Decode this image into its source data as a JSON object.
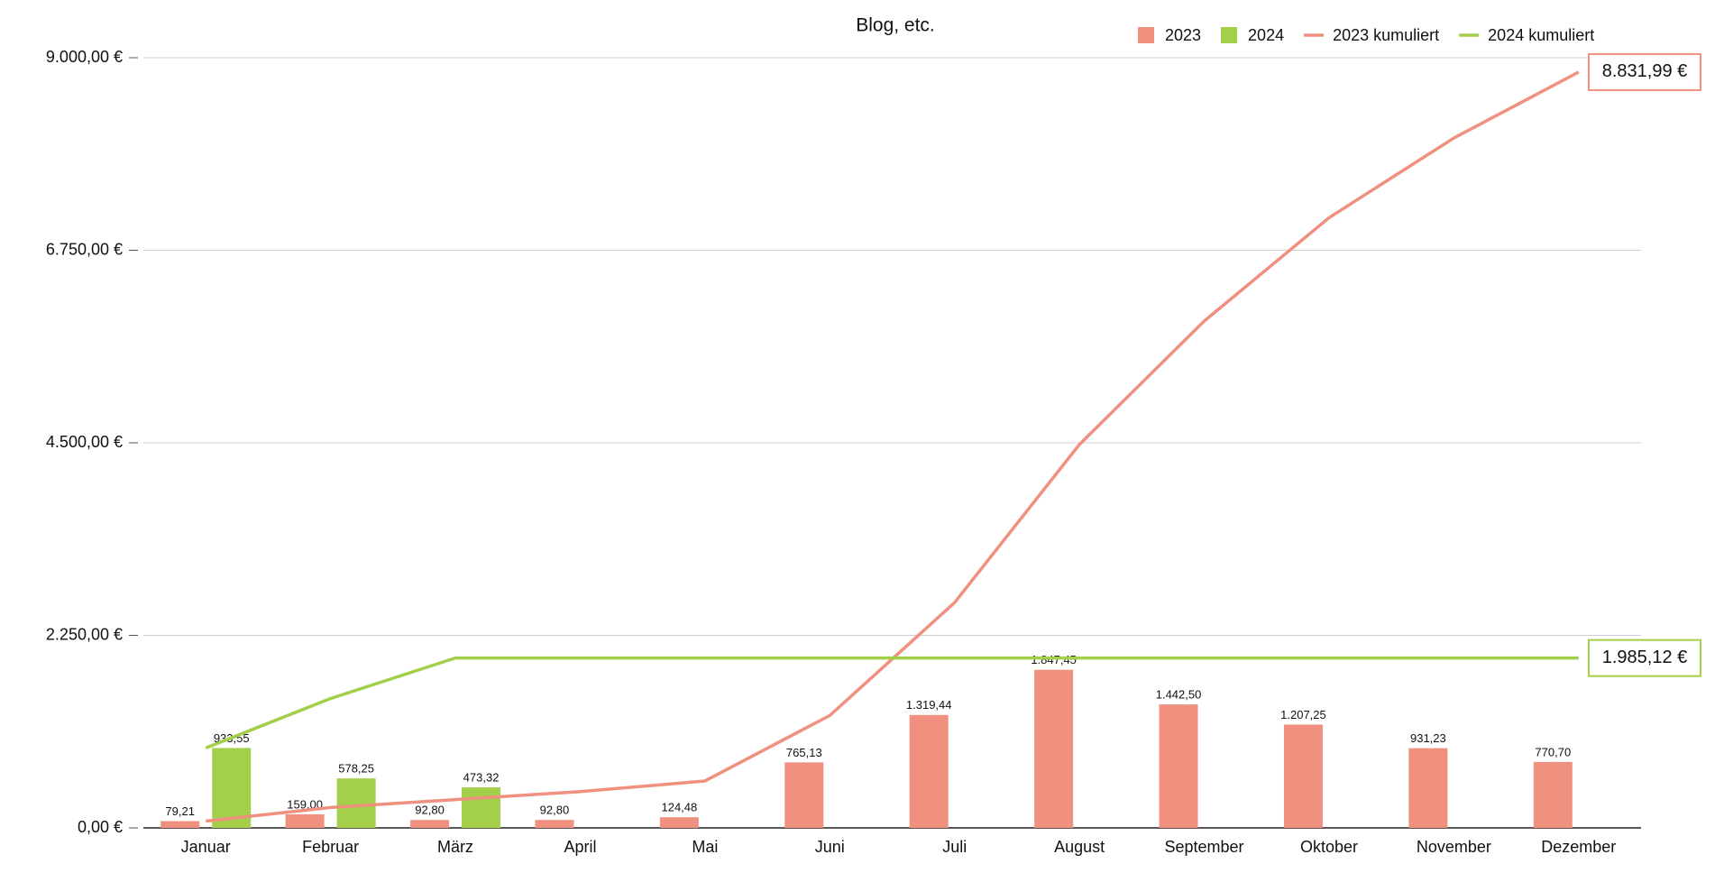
{
  "chart_data": {
    "type": "bar",
    "title": "Blog, etc.",
    "categories": [
      "Januar",
      "Februar",
      "März",
      "April",
      "Mai",
      "Juni",
      "Juli",
      "August",
      "September",
      "Oktober",
      "November",
      "Dezember"
    ],
    "series": [
      {
        "name": "2023",
        "type": "bar",
        "color": "#f0907e",
        "values": [
          79.21,
          159.0,
          92.8,
          92.8,
          124.48,
          765.13,
          1319.44,
          1847.45,
          1442.5,
          1207.25,
          931.23,
          770.7
        ],
        "value_labels": [
          "79,21",
          "159,00",
          "92,80",
          "92,80",
          "124,48",
          "765,13",
          "1.319,44",
          "1.847,45",
          "1.442,50",
          "1.207,25",
          "931,23",
          "770,70"
        ]
      },
      {
        "name": "2024",
        "type": "bar",
        "color": "#a3cf4a",
        "values": [
          933.55,
          578.25,
          473.32,
          null,
          null,
          null,
          null,
          null,
          null,
          null,
          null,
          null
        ],
        "value_labels": [
          "933,55",
          "578,25",
          "473,32",
          null,
          null,
          null,
          null,
          null,
          null,
          null,
          null,
          null
        ]
      },
      {
        "name": "2023 kumuliert",
        "type": "line",
        "color": "#f0907e",
        "values": [
          79.21,
          238.21,
          331.01,
          423.81,
          548.29,
          1313.42,
          2632.86,
          4480.31,
          5922.81,
          7130.06,
          8061.29,
          8831.99
        ],
        "value_labels": [
          null,
          null,
          null,
          null,
          null,
          null,
          null,
          null,
          null,
          null,
          null,
          "8.831,99 €"
        ]
      },
      {
        "name": "2024 kumuliert",
        "type": "line",
        "color": "#a3cf4a",
        "values": [
          933.55,
          1511.8,
          1985.12,
          1985.12,
          1985.12,
          1985.12,
          1985.12,
          1985.12,
          1985.12,
          1985.12,
          1985.12,
          1985.12
        ],
        "value_labels": [
          null,
          null,
          null,
          null,
          null,
          null,
          null,
          null,
          null,
          null,
          null,
          "1.985,12 €"
        ]
      }
    ],
    "ylim": [
      0,
      9000
    ],
    "yticks": [
      {
        "value": 0,
        "label": "0,00 €"
      },
      {
        "value": 2250,
        "label": "2.250,00 €"
      },
      {
        "value": 4500,
        "label": "4.500,00 €"
      },
      {
        "value": 6750,
        "label": "6.750,00 €"
      },
      {
        "value": 9000,
        "label": "9.000,00 €"
      }
    ],
    "grid": true
  }
}
